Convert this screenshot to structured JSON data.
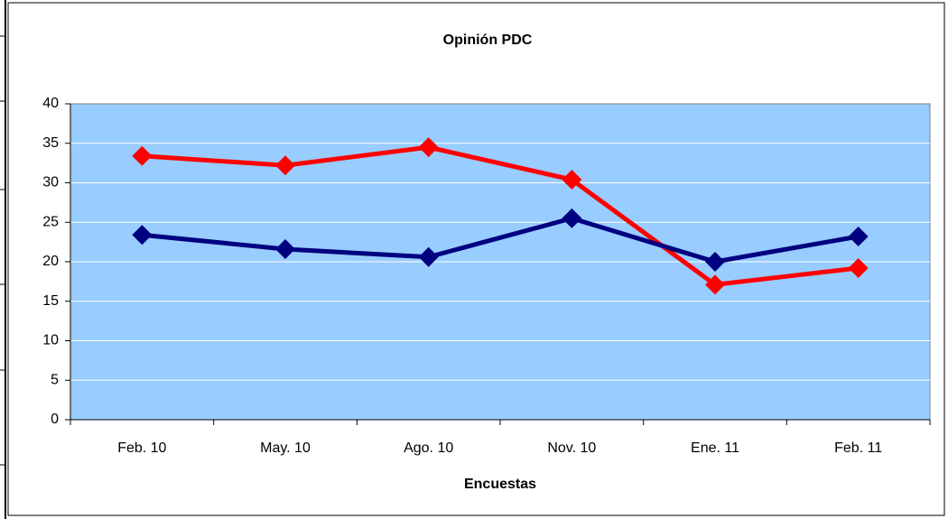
{
  "chart_data": {
    "type": "line",
    "title": "Opinión PDC",
    "x_label": "Encuestas",
    "categories": [
      "Feb. 10",
      "May. 10",
      "Ago. 10",
      "Nov. 10",
      "Ene. 11",
      "Feb. 11"
    ],
    "series": [
      {
        "color": "#ff0000",
        "values": [
          33.4,
          32.2,
          34.5,
          30.4,
          17.1,
          19.2
        ]
      },
      {
        "color": "#000080",
        "values": [
          23.4,
          21.6,
          20.6,
          25.5,
          20.0,
          23.2
        ]
      }
    ],
    "ylim": [
      0,
      40
    ],
    "yticks": [
      0,
      5,
      10,
      15,
      20,
      25,
      30,
      35,
      40
    ],
    "grid": true
  }
}
